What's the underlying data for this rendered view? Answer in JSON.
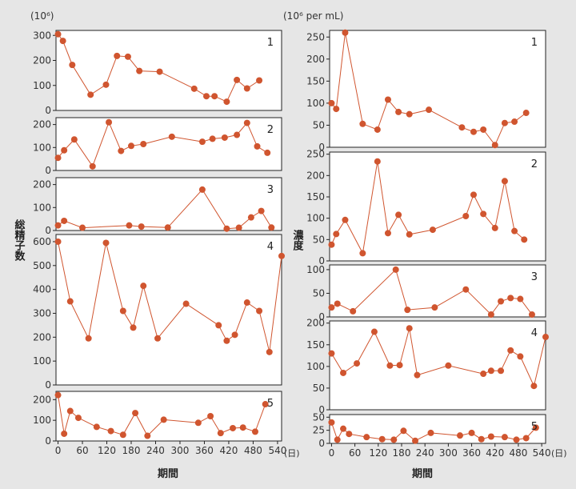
{
  "figure": {
    "left_unit": "(10⁶)",
    "right_unit": "(10⁶ per mL)",
    "left_ylabel": "総精子数",
    "right_ylabel": "濃度",
    "xlabel": "期間",
    "x_unit": "(日)",
    "x_ticks": [
      0,
      60,
      120,
      180,
      240,
      300,
      360,
      420,
      480,
      540
    ]
  },
  "colors": {
    "series": "#d0552f",
    "background": "#e6e6e6",
    "plot_bg": "#ffffff"
  },
  "chart_data": [
    {
      "type": "line",
      "panel_label": "1",
      "ylim": [
        0,
        320
      ],
      "yticks": [
        0,
        100,
        200,
        300
      ],
      "xlim": [
        -5,
        550
      ],
      "x": [
        0,
        12,
        35,
        80,
        118,
        145,
        172,
        200,
        250,
        335,
        365,
        385,
        415,
        440,
        465,
        495
      ],
      "y": [
        305,
        278,
        182,
        63,
        103,
        218,
        215,
        158,
        155,
        87,
        57,
        57,
        35,
        122,
        88,
        120
      ]
    },
    {
      "type": "line",
      "panel_label": "2",
      "ylim": [
        0,
        230
      ],
      "yticks": [
        0,
        100,
        200
      ],
      "xlim": [
        -5,
        550
      ],
      "x": [
        0,
        15,
        40,
        85,
        125,
        155,
        180,
        210,
        280,
        355,
        380,
        410,
        440,
        465,
        490,
        515
      ],
      "y": [
        55,
        88,
        135,
        18,
        210,
        85,
        107,
        115,
        147,
        125,
        138,
        143,
        155,
        207,
        105,
        77
      ]
    },
    {
      "type": "line",
      "panel_label": "3",
      "ylim": [
        0,
        230
      ],
      "yticks": [
        0,
        100,
        200
      ],
      "xlim": [
        -5,
        550
      ],
      "x": [
        0,
        15,
        60,
        175,
        205,
        270,
        355,
        415,
        445,
        475,
        500,
        525
      ],
      "y": [
        22,
        42,
        12,
        22,
        17,
        13,
        178,
        8,
        12,
        57,
        85,
        13
      ]
    },
    {
      "type": "line",
      "panel_label": "4",
      "ylim": [
        0,
        630
      ],
      "yticks": [
        0,
        100,
        200,
        300,
        400,
        500,
        600
      ],
      "xlim": [
        -5,
        550
      ],
      "x": [
        0,
        30,
        75,
        118,
        160,
        185,
        210,
        245,
        315,
        395,
        415,
        435,
        465,
        495,
        520,
        550
      ],
      "y": [
        600,
        350,
        195,
        595,
        310,
        240,
        415,
        195,
        340,
        250,
        185,
        210,
        345,
        310,
        138,
        540
      ]
    },
    {
      "type": "line",
      "panel_label": "5",
      "ylim": [
        0,
        240
      ],
      "yticks": [
        0,
        100,
        200
      ],
      "xlim": [
        -5,
        550
      ],
      "x": [
        0,
        15,
        30,
        50,
        95,
        130,
        160,
        190,
        220,
        260,
        345,
        375,
        400,
        430,
        455,
        485,
        510
      ],
      "y": [
        222,
        35,
        145,
        112,
        68,
        48,
        30,
        135,
        25,
        103,
        88,
        120,
        38,
        62,
        65,
        45,
        178
      ]
    },
    {
      "type": "line",
      "panel_label": "1",
      "ylim": [
        0,
        265
      ],
      "yticks": [
        0,
        50,
        100,
        150,
        200,
        250
      ],
      "xlim": [
        -5,
        550
      ],
      "x": [
        0,
        12,
        35,
        80,
        118,
        145,
        172,
        200,
        250,
        335,
        365,
        390,
        420,
        445,
        470,
        500
      ],
      "y": [
        100,
        87,
        260,
        53,
        40,
        108,
        80,
        75,
        85,
        45,
        35,
        40,
        5,
        55,
        58,
        78
      ]
    },
    {
      "type": "line",
      "panel_label": "2",
      "ylim": [
        0,
        255
      ],
      "yticks": [
        0,
        50,
        100,
        150,
        200,
        250
      ],
      "xlim": [
        -5,
        550
      ],
      "x": [
        0,
        12,
        35,
        80,
        118,
        145,
        172,
        200,
        260,
        345,
        365,
        390,
        420,
        445,
        470,
        495
      ],
      "y": [
        38,
        63,
        96,
        18,
        233,
        65,
        108,
        62,
        73,
        105,
        155,
        110,
        77,
        187,
        70,
        50
      ]
    },
    {
      "type": "line",
      "panel_label": "3",
      "ylim": [
        0,
        110
      ],
      "yticks": [
        0,
        50,
        100
      ],
      "xlim": [
        -5,
        550
      ],
      "x": [
        0,
        15,
        55,
        165,
        195,
        265,
        345,
        410,
        435,
        460,
        485,
        515
      ],
      "y": [
        20,
        28,
        12,
        100,
        15,
        20,
        58,
        5,
        33,
        40,
        38,
        5
      ]
    },
    {
      "type": "line",
      "panel_label": "4",
      "ylim": [
        0,
        205
      ],
      "yticks": [
        0,
        50,
        100,
        150,
        200
      ],
      "xlim": [
        -5,
        550
      ],
      "x": [
        0,
        30,
        65,
        110,
        150,
        175,
        200,
        220,
        300,
        390,
        410,
        435,
        460,
        485,
        520,
        550
      ],
      "y": [
        130,
        85,
        107,
        180,
        102,
        103,
        188,
        80,
        102,
        83,
        90,
        90,
        137,
        123,
        55,
        168
      ]
    },
    {
      "type": "line",
      "panel_label": "5",
      "ylim": [
        0,
        55
      ],
      "yticks": [
        0,
        25,
        50
      ],
      "xlim": [
        -5,
        550
      ],
      "x": [
        0,
        15,
        30,
        45,
        90,
        130,
        160,
        185,
        215,
        255,
        330,
        360,
        385,
        410,
        445,
        475,
        500,
        525
      ],
      "y": [
        40,
        7,
        28,
        18,
        12,
        8,
        7,
        24,
        5,
        20,
        15,
        20,
        8,
        13,
        12,
        7,
        10,
        30
      ]
    }
  ]
}
